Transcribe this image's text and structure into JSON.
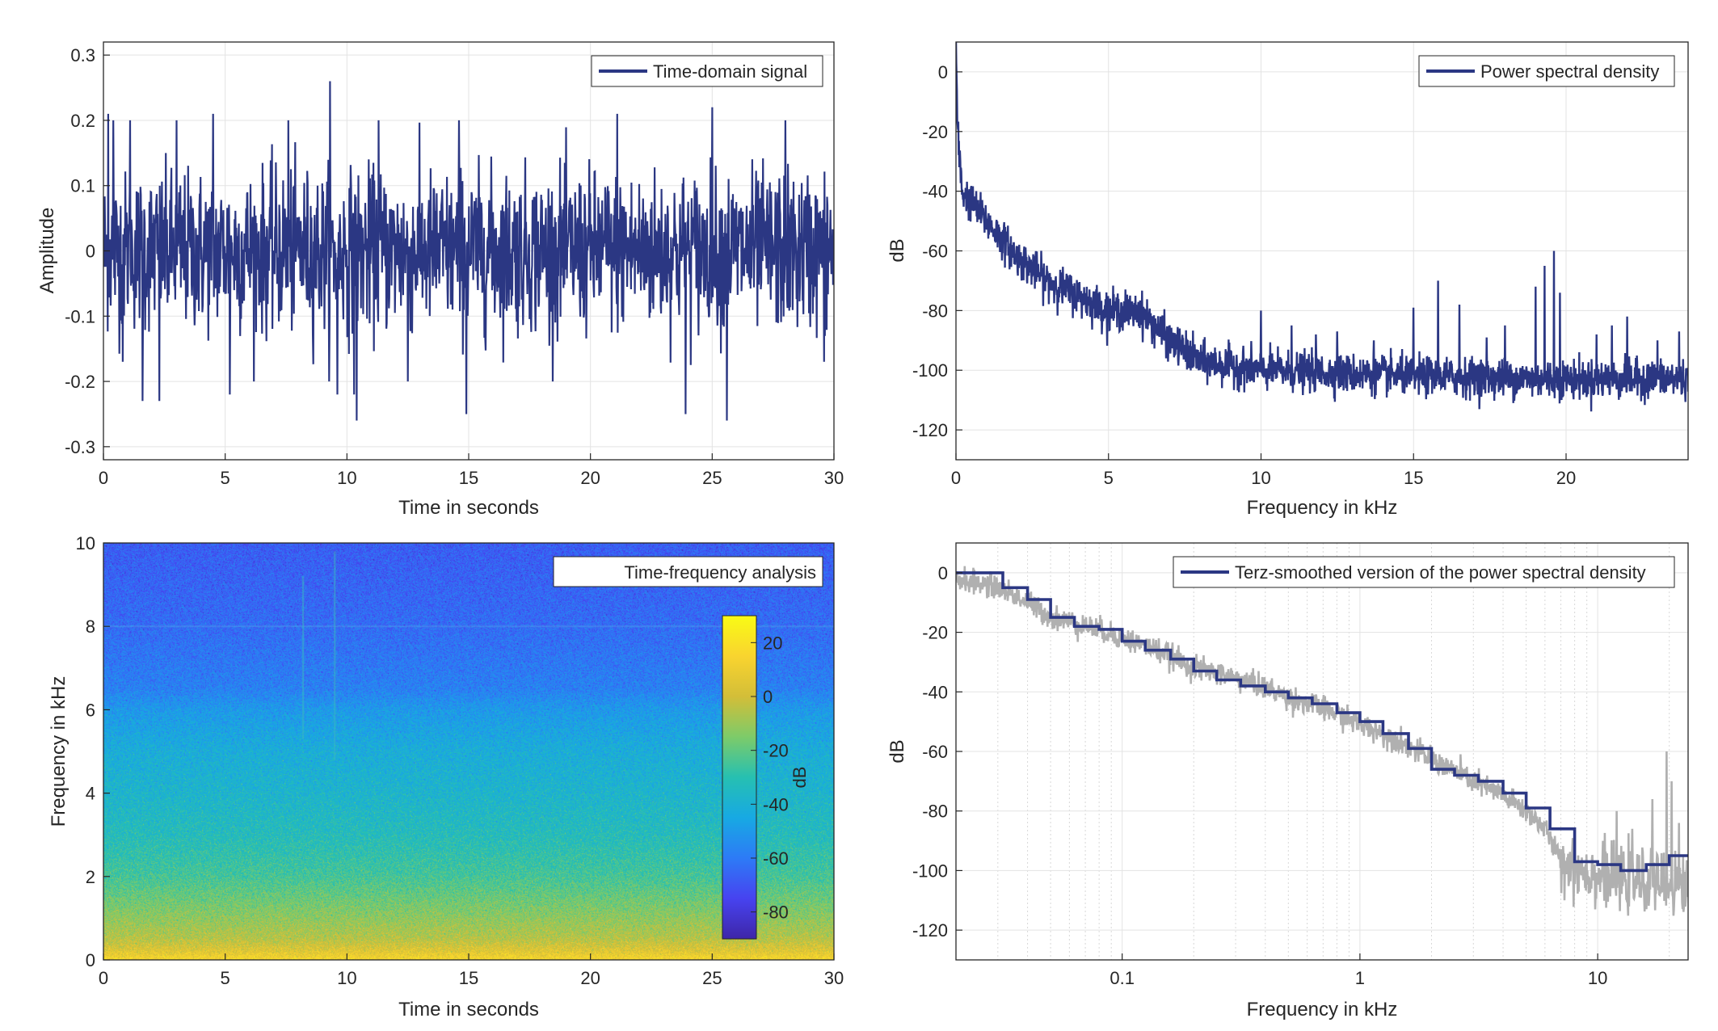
{
  "colors": {
    "line": "#2B3783",
    "gray_line": "#B0B0B0",
    "axes": "#262626",
    "grid": "#E3E3E3",
    "colormap": [
      "#3E26A8",
      "#4743F0",
      "#2D7BF6",
      "#17A9E3",
      "#26C0B1",
      "#7DCB69",
      "#D3BE38",
      "#F9D42F",
      "#F9FB15"
    ]
  },
  "chart_data": [
    {
      "id": "time_domain",
      "type": "line",
      "xlabel": "Time in seconds",
      "ylabel": "Amplitude",
      "xlim": [
        0,
        30
      ],
      "ylim": [
        -0.32,
        0.32
      ],
      "xticks": [
        0,
        5,
        10,
        15,
        20,
        25,
        30
      ],
      "xtick_labels": [
        "0",
        "5",
        "10",
        "15",
        "20",
        "25",
        "30"
      ],
      "yticks": [
        0.3,
        0.2,
        0.1,
        0,
        -0.1,
        -0.2,
        -0.3
      ],
      "ytick_labels": [
        "0.3",
        "0.2",
        "0.1",
        "0",
        "-0.1",
        "-0.2",
        "-0.3"
      ],
      "grid": true,
      "legend": {
        "entries": [
          "Time-domain signal"
        ],
        "location": "top-right"
      },
      "series": [
        {
          "name": "Time-domain signal",
          "type": "noise",
          "std": 0.06,
          "peaks": [
            [
              0.2,
              0.21
            ],
            [
              0.4,
              0.2
            ],
            [
              0.8,
              -0.17
            ],
            [
              1.1,
              0.2
            ],
            [
              1.6,
              -0.23
            ],
            [
              2.3,
              0.23
            ],
            [
              2.3,
              -0.23
            ],
            [
              3.0,
              0.2
            ],
            [
              4.5,
              0.21
            ],
            [
              5.2,
              -0.22
            ],
            [
              7.6,
              0.2
            ],
            [
              9.3,
              0.26
            ],
            [
              9.6,
              -0.22
            ],
            [
              10.3,
              -0.22
            ],
            [
              10.4,
              -0.26
            ],
            [
              11.3,
              0.2
            ],
            [
              12.5,
              -0.2
            ],
            [
              14.6,
              0.2
            ],
            [
              14.9,
              -0.25
            ],
            [
              21.1,
              0.21
            ],
            [
              23.9,
              0.25
            ],
            [
              23.9,
              -0.25
            ],
            [
              25.0,
              0.22
            ],
            [
              25.6,
              -0.26
            ],
            [
              28.0,
              0.2
            ],
            [
              29.6,
              -0.17
            ]
          ]
        }
      ]
    },
    {
      "id": "psd",
      "type": "line",
      "xlabel": "Frequency in kHz",
      "ylabel": "dB",
      "xlim": [
        0,
        24
      ],
      "ylim": [
        -130,
        10
      ],
      "xticks": [
        0,
        5,
        10,
        15,
        20
      ],
      "xtick_labels": [
        "0",
        "5",
        "10",
        "15",
        "20"
      ],
      "yticks": [
        0,
        -20,
        -40,
        -60,
        -80,
        -100,
        -120
      ],
      "ytick_labels": [
        "0",
        "-20",
        "-40",
        "-60",
        "-80",
        "-100",
        "-120"
      ],
      "grid": true,
      "legend": {
        "entries": [
          "Power spectral density"
        ],
        "location": "top-right"
      },
      "series": [
        {
          "name": "Power spectral density",
          "type": "noisy_envelope",
          "envelope": [
            [
              0,
              10
            ],
            [
              0.05,
              -20
            ],
            [
              0.2,
              -40
            ],
            [
              1,
              -50
            ],
            [
              2,
              -62
            ],
            [
              3,
              -70
            ],
            [
              4,
              -75
            ],
            [
              5,
              -80
            ],
            [
              6,
              -80
            ],
            [
              7,
              -90
            ],
            [
              8,
              -97
            ],
            [
              10,
              -100
            ],
            [
              15,
              -102
            ],
            [
              20,
              -103
            ],
            [
              24,
              -103
            ]
          ],
          "peaks": [
            [
              5.8,
              -78
            ],
            [
              10.0,
              -80
            ],
            [
              11.0,
              -85
            ],
            [
              11.8,
              -88
            ],
            [
              12.5,
              -87
            ],
            [
              13.7,
              -90
            ],
            [
              15.0,
              -79
            ],
            [
              15.8,
              -70
            ],
            [
              16.5,
              -78
            ],
            [
              17.4,
              -89
            ],
            [
              18.0,
              -85
            ],
            [
              19.0,
              -72
            ],
            [
              19.3,
              -65
            ],
            [
              19.6,
              -60
            ],
            [
              19.8,
              -74
            ],
            [
              21.0,
              -88
            ],
            [
              21.5,
              -85
            ],
            [
              22.0,
              -82
            ],
            [
              23.0,
              -90
            ],
            [
              23.7,
              -87
            ]
          ]
        }
      ]
    },
    {
      "id": "spectrogram",
      "type": "heatmap",
      "xlabel": "Time in seconds",
      "ylabel": "Frequency in kHz",
      "xlim": [
        0,
        30
      ],
      "ylim": [
        0,
        10
      ],
      "xticks": [
        0,
        5,
        10,
        15,
        20,
        25,
        30
      ],
      "xtick_labels": [
        "0",
        "5",
        "10",
        "15",
        "20",
        "25",
        "30"
      ],
      "yticks": [
        10,
        8,
        6,
        4,
        2,
        0
      ],
      "ytick_labels": [
        "10",
        "8",
        "6",
        "4",
        "2",
        "0"
      ],
      "legend": {
        "entries": [
          "Time-frequency analysis"
        ],
        "location": "top-right"
      },
      "colorbar": {
        "label": "dB",
        "range": [
          -90,
          30
        ],
        "ticks": [
          20,
          0,
          -20,
          -40,
          -60,
          -80
        ],
        "tick_labels": [
          "20",
          "0",
          "-20",
          "-40",
          "-60",
          "-80"
        ]
      },
      "profile": [
        [
          0,
          15
        ],
        [
          0.2,
          5
        ],
        [
          0.5,
          -5
        ],
        [
          1,
          -12
        ],
        [
          2,
          -25
        ],
        [
          3,
          -33
        ],
        [
          4,
          -38
        ],
        [
          5,
          -42
        ],
        [
          6,
          -50
        ],
        [
          6.5,
          -58
        ],
        [
          8,
          -64
        ],
        [
          10,
          -68
        ]
      ],
      "band_line_khz": 8,
      "streaks": [
        [
          8.2,
          5.3,
          9.2
        ],
        [
          9.5,
          4.8,
          9.8
        ]
      ]
    },
    {
      "id": "terz",
      "type": "line",
      "xlabel": "Frequency in kHz",
      "ylabel": "dB",
      "xscale": "log",
      "xlim": [
        0.02,
        24
      ],
      "ylim": [
        -130,
        10
      ],
      "xticks": [
        0.1,
        1,
        10
      ],
      "xtick_labels": [
        "0.1",
        "1",
        "10"
      ],
      "yticks": [
        0,
        -20,
        -40,
        -60,
        -80,
        -100,
        -120
      ],
      "ytick_labels": [
        "0",
        "-20",
        "-40",
        "-60",
        "-80",
        "-100",
        "-120"
      ],
      "grid": true,
      "legend": {
        "entries": [
          "Terz-smoothed version of the power spectral density"
        ],
        "location": "top-right"
      },
      "series": [
        {
          "name": "Terz-smoothed version of the power spectral density",
          "type": "step",
          "x": [
            0.02,
            0.0315,
            0.04,
            0.05,
            0.063,
            0.08,
            0.1,
            0.125,
            0.16,
            0.2,
            0.25,
            0.315,
            0.4,
            0.5,
            0.63,
            0.8,
            1.0,
            1.25,
            1.6,
            2.0,
            2.5,
            3.15,
            4.0,
            5.0,
            6.3,
            8.0,
            10.0,
            12.5,
            16.0,
            20.0,
            24.0
          ],
          "y": [
            0,
            -5,
            -9,
            -15,
            -18,
            -19,
            -23,
            -26,
            -29,
            -33,
            -36,
            -38,
            -40,
            -42,
            -44,
            -47,
            -50,
            -54,
            -59,
            -66,
            -68,
            -70,
            -74,
            -79,
            -86,
            -97,
            -98,
            -100,
            -98,
            -95,
            -95
          ]
        },
        {
          "name": "",
          "type": "noisy_envelope",
          "color_key": "gray_line",
          "envelope": [
            [
              0.02,
              -2
            ],
            [
              0.03,
              -5
            ],
            [
              0.05,
              -15
            ],
            [
              0.1,
              -22
            ],
            [
              0.2,
              -32
            ],
            [
              0.5,
              -42
            ],
            [
              1,
              -51
            ],
            [
              2,
              -63
            ],
            [
              3,
              -70
            ],
            [
              5,
              -80
            ],
            [
              6,
              -86
            ],
            [
              7,
              -97
            ],
            [
              10,
              -102
            ],
            [
              15,
              -104
            ],
            [
              24,
              -105
            ]
          ],
          "peaks": [
            [
              10.5,
              -90
            ],
            [
              12.0,
              -80
            ],
            [
              14.0,
              -86
            ],
            [
              17.0,
              -76
            ],
            [
              19.5,
              -60
            ],
            [
              20.5,
              -70
            ],
            [
              22.0,
              -84
            ]
          ]
        }
      ]
    }
  ]
}
